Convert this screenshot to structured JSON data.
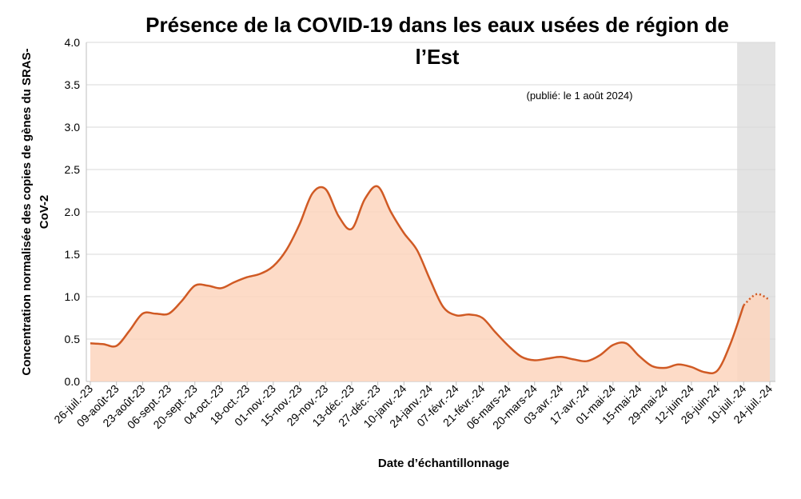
{
  "chart_data": {
    "type": "line",
    "title": [
      "Présence de la COVID-19 dans les eaux usées de région de",
      "l’Est"
    ],
    "subtitle": "(publié: le 1 août 2024)",
    "y_label": [
      "Concentration normalisée des copies de gènes du SRAS-",
      "CoV-2"
    ],
    "x_label": "Date d’échantillonnage",
    "categories": [
      "26-juil.-23",
      null,
      "09-août-23",
      null,
      "23-août-23",
      null,
      "06-sept.-23",
      null,
      "20-sept.-23",
      null,
      "04-oct.-23",
      null,
      "18-oct.-23",
      null,
      "01-nov.-23",
      null,
      "15-nov.-23",
      null,
      "29-nov.-23",
      null,
      "13-déc.-23",
      null,
      "27-déc.-23",
      null,
      "10-janv.-24",
      null,
      "24-janv.-24",
      null,
      "07-févr.-24",
      null,
      "21-févr.-24",
      null,
      "06-mars-24",
      null,
      "20-mars-24",
      null,
      "03-avr.-24",
      null,
      "17-avr.-24",
      null,
      "01-mai-24",
      null,
      "15-mai-24",
      null,
      "29-mai-24",
      null,
      "12-juin-24",
      null,
      "26-juin-24",
      null,
      "10-juil.-24",
      null,
      "24-juil.-24"
    ],
    "series": [
      {
        "name": "Concentration",
        "color": "#d05a24",
        "fill": "#fdd5bd",
        "values": [
          0.45,
          0.44,
          0.42,
          0.6,
          0.8,
          0.8,
          0.8,
          0.95,
          1.13,
          1.13,
          1.1,
          1.17,
          1.23,
          1.27,
          1.36,
          1.55,
          1.85,
          2.22,
          2.27,
          1.95,
          1.8,
          2.15,
          2.3,
          2.0,
          1.75,
          1.55,
          1.2,
          0.88,
          0.78,
          0.79,
          0.75,
          0.58,
          0.42,
          0.29,
          0.25,
          0.27,
          0.29,
          0.26,
          0.24,
          0.31,
          0.43,
          0.45,
          0.3,
          0.18,
          0.16,
          0.2,
          0.17,
          0.11,
          0.13,
          0.45,
          0.9,
          1.03,
          0.96
        ]
      }
    ],
    "provisional_from": "10-juil.-24",
    "ylim": [
      0,
      4
    ],
    "yticks": [
      {
        "value": 0,
        "label": "0.0"
      },
      {
        "value": 0.5,
        "label": "0.5"
      },
      {
        "value": 1,
        "label": "1.0"
      },
      {
        "value": 1.5,
        "label": "1.5"
      },
      {
        "value": 2,
        "label": "2.0"
      },
      {
        "value": 2.5,
        "label": "2.5"
      },
      {
        "value": 3,
        "label": "3.0"
      },
      {
        "value": 3.5,
        "label": "3.5"
      },
      {
        "value": 4,
        "label": "4.0"
      }
    ],
    "grid": true
  }
}
